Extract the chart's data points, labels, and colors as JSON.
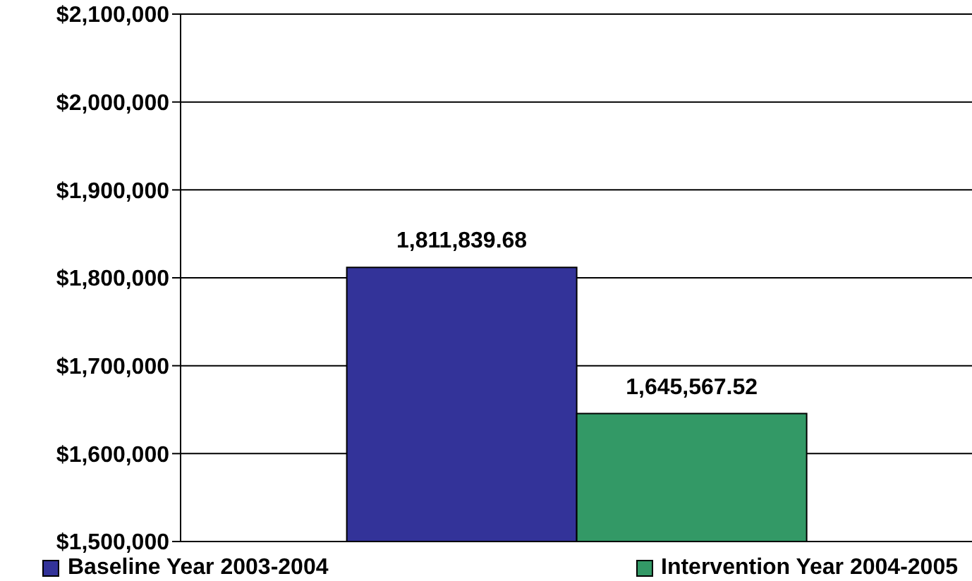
{
  "chart_data": {
    "type": "bar",
    "categories": [
      null
    ],
    "series": [
      {
        "name": "Baseline Year 2003-2004",
        "color": "#333399",
        "values": [
          1811839.68
        ],
        "value_labels": [
          "1,811,839.68"
        ]
      },
      {
        "name": "Intervention Year 2004-2005",
        "color": "#339966",
        "values": [
          1645567.52
        ],
        "value_labels": [
          "1,645,567.52"
        ]
      }
    ],
    "ylim": [
      1500000,
      2100000
    ],
    "yticks": [
      {
        "value": 1500000,
        "label": "$1,500,000"
      },
      {
        "value": 1600000,
        "label": "$1,600,000"
      },
      {
        "value": 1700000,
        "label": "$1,700,000"
      },
      {
        "value": 1800000,
        "label": "$1,800,000"
      },
      {
        "value": 1900000,
        "label": "$1,900,000"
      },
      {
        "value": 2000000,
        "label": "$2,000,000"
      },
      {
        "value": 2100000,
        "label": "$2,100,000"
      }
    ],
    "grid": "y",
    "legend": "bottom"
  }
}
